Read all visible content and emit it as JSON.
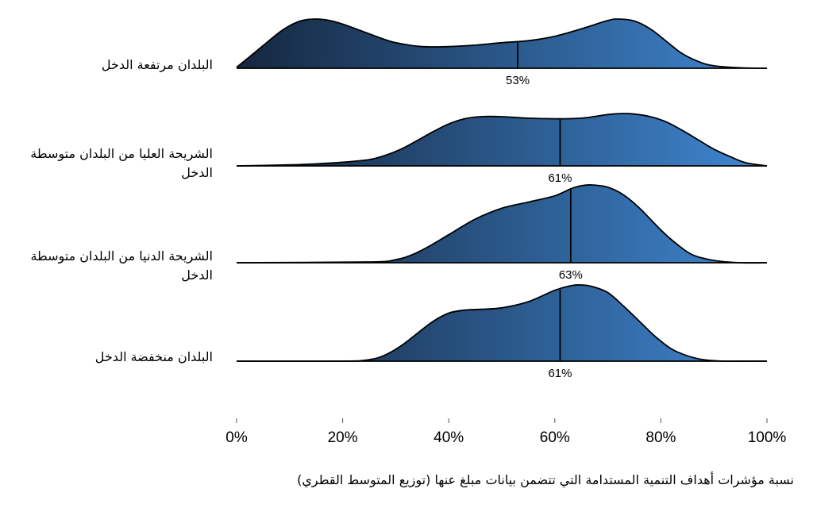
{
  "chart_data": {
    "type": "ridgeline",
    "xlabel": "نسبة مؤشرات أهداف التنمية المستدامة التي تتضمن بيانات مبلغ عنها (توزيع المتوسط القطري)",
    "ylabel": "",
    "xlim": [
      0,
      100
    ],
    "x_ticks": [
      0,
      20,
      40,
      60,
      80,
      100
    ],
    "x_tick_labels": [
      "0%",
      "20%",
      "40%",
      "60%",
      "80%",
      "100%"
    ],
    "grid": false,
    "colors": {
      "fill_start": "#15273f",
      "fill_end": "#3f87d2",
      "stroke": "#000000"
    },
    "series": [
      {
        "name": "البلدان مرتفعة الدخل",
        "median": 53,
        "median_label": "53%",
        "density": {
          "x": [
            0,
            3,
            6,
            9,
            12,
            15,
            18,
            21,
            24,
            27,
            30,
            35,
            40,
            45,
            50,
            55,
            60,
            65,
            70,
            72,
            75,
            78,
            81,
            84,
            87,
            90,
            95,
            100
          ],
          "y": [
            0.02,
            0.28,
            0.55,
            0.8,
            0.96,
            1.0,
            0.96,
            0.86,
            0.74,
            0.62,
            0.52,
            0.44,
            0.44,
            0.47,
            0.52,
            0.56,
            0.65,
            0.8,
            0.97,
            1.0,
            0.96,
            0.8,
            0.55,
            0.3,
            0.14,
            0.05,
            0.01,
            0.0
          ]
        }
      },
      {
        "name": "الشريحة العليا من البلدان متوسطة الدخل",
        "median": 61,
        "median_label": "61%",
        "density": {
          "x": [
            0,
            10,
            15,
            20,
            25,
            28,
            31,
            34,
            37,
            40,
            43,
            46,
            50,
            55,
            60,
            65,
            70,
            73,
            75,
            78,
            81,
            84,
            87,
            90,
            93,
            96,
            100
          ],
          "y": [
            0.0,
            0.02,
            0.04,
            0.07,
            0.12,
            0.2,
            0.32,
            0.48,
            0.65,
            0.8,
            0.9,
            0.94,
            0.94,
            0.91,
            0.9,
            0.91,
            0.98,
            1.0,
            0.99,
            0.94,
            0.84,
            0.68,
            0.5,
            0.32,
            0.18,
            0.06,
            0.0
          ]
        }
      },
      {
        "name": "الشريحة الدنيا من البلدان متوسطة الدخل",
        "median": 63,
        "median_label": "63%",
        "density": {
          "x": [
            0,
            25,
            30,
            33,
            36,
            40,
            45,
            50,
            55,
            60,
            63,
            65,
            67,
            70,
            73,
            76,
            80,
            83,
            86,
            90,
            95,
            100
          ],
          "y": [
            0.0,
            0.01,
            0.04,
            0.1,
            0.2,
            0.36,
            0.56,
            0.7,
            0.78,
            0.86,
            0.95,
            0.99,
            1.0,
            0.97,
            0.87,
            0.7,
            0.42,
            0.24,
            0.1,
            0.03,
            0.0,
            0.0
          ]
        }
      },
      {
        "name": "البلدان منخفضة الدخل",
        "median": 61,
        "median_label": "61%",
        "density": {
          "x": [
            0,
            20,
            25,
            28,
            31,
            34,
            37,
            40,
            43,
            46,
            50,
            55,
            60,
            63,
            65,
            67,
            70,
            73,
            76,
            79,
            82,
            85,
            88,
            92,
            96,
            100
          ],
          "y": [
            0.0,
            0.0,
            0.02,
            0.08,
            0.2,
            0.36,
            0.52,
            0.63,
            0.67,
            0.68,
            0.7,
            0.78,
            0.93,
            0.99,
            1.0,
            0.98,
            0.9,
            0.72,
            0.52,
            0.32,
            0.16,
            0.07,
            0.02,
            0.0,
            0.0,
            0.0
          ]
        }
      }
    ]
  }
}
